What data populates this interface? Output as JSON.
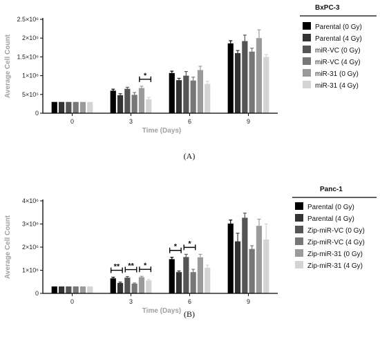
{
  "chart_data": [
    {
      "type": "bar",
      "panel_label": "(A)",
      "legend_title": "BxPC-3",
      "xlabel": "Time (Days)",
      "ylabel": "Average Cell Count",
      "categories": [
        "0",
        "3",
        "6",
        "9"
      ],
      "ylim": [
        0,
        2500000
      ],
      "y_ticks": [
        {
          "value": 0,
          "label": "0"
        },
        {
          "value": 500000,
          "label": "5×10⁵"
        },
        {
          "value": 1000000,
          "label": "1×10⁶"
        },
        {
          "value": 1500000,
          "label": "1.5×10⁶"
        },
        {
          "value": 2000000,
          "label": "2×10⁶"
        },
        {
          "value": 2500000,
          "label": "2.5×10⁶"
        }
      ],
      "legend_placement": "right",
      "grid": false,
      "series": [
        {
          "name": "Parental (0 Gy)",
          "color": "#000000",
          "values": [
            300000,
            600000,
            1070000,
            1860000
          ],
          "errors": [
            0,
            40000,
            50000,
            70000
          ]
        },
        {
          "name": "Parental (4 Gy)",
          "color": "#333333",
          "values": [
            300000,
            480000,
            880000,
            1600000
          ],
          "errors": [
            0,
            40000,
            50000,
            70000
          ]
        },
        {
          "name": "miR-VC (0 Gy)",
          "color": "#555555",
          "values": [
            300000,
            650000,
            1000000,
            1920000
          ],
          "errors": [
            0,
            40000,
            110000,
            160000
          ]
        },
        {
          "name": "miR-VC (4 Gy)",
          "color": "#777777",
          "values": [
            300000,
            490000,
            870000,
            1640000
          ],
          "errors": [
            0,
            60000,
            90000,
            90000
          ]
        },
        {
          "name": "miR-31 (0 Gy)",
          "color": "#9b9b9b",
          "values": [
            300000,
            670000,
            1150000,
            2000000
          ],
          "errors": [
            0,
            50000,
            100000,
            220000
          ]
        },
        {
          "name": "miR-31 (4 Gy)",
          "color": "#d4d4d4",
          "values": [
            300000,
            370000,
            780000,
            1500000
          ],
          "errors": [
            0,
            50000,
            70000,
            60000
          ]
        }
      ],
      "significance": [
        {
          "category_index": 1,
          "from_series": 4,
          "to_series": 5,
          "label": "*"
        }
      ]
    },
    {
      "type": "bar",
      "panel_label": "(B)",
      "legend_title": "Panc-1",
      "xlabel": "Time (Days)",
      "ylabel": "Average Cell Count",
      "categories": [
        "0",
        "3",
        "6",
        "9"
      ],
      "ylim": [
        0,
        4000000
      ],
      "y_ticks": [
        {
          "value": 0,
          "label": "0"
        },
        {
          "value": 1000000,
          "label": "1×10⁶"
        },
        {
          "value": 2000000,
          "label": "2×10⁶"
        },
        {
          "value": 3000000,
          "label": "3×10⁶"
        },
        {
          "value": 4000000,
          "label": "4×10⁶"
        }
      ],
      "legend_placement": "right",
      "grid": false,
      "series": [
        {
          "name": "Parental (0 Gy)",
          "color": "#000000",
          "values": [
            300000,
            650000,
            1480000,
            3020000
          ],
          "errors": [
            0,
            50000,
            80000,
            150000
          ]
        },
        {
          "name": "Parental (4 Gy)",
          "color": "#333333",
          "values": [
            300000,
            450000,
            920000,
            2250000
          ],
          "errors": [
            0,
            40000,
            50000,
            350000
          ]
        },
        {
          "name": "Zip-miR-VC (0 Gy)",
          "color": "#555555",
          "values": [
            300000,
            680000,
            1570000,
            3270000
          ],
          "errors": [
            0,
            50000,
            120000,
            200000
          ]
        },
        {
          "name": "Zip-miR-VC (4 Gy)",
          "color": "#777777",
          "values": [
            300000,
            420000,
            920000,
            1920000
          ],
          "errors": [
            0,
            30000,
            120000,
            140000
          ]
        },
        {
          "name": "Zip-miR-31 (0 Gy)",
          "color": "#9b9b9b",
          "values": [
            300000,
            700000,
            1560000,
            2920000
          ],
          "errors": [
            0,
            40000,
            130000,
            290000
          ]
        },
        {
          "name": "Zip-miR-31 (4 Gy)",
          "color": "#d4d4d4",
          "values": [
            300000,
            560000,
            1110000,
            2330000
          ],
          "errors": [
            0,
            40000,
            110000,
            670000
          ]
        }
      ],
      "significance": [
        {
          "category_index": 1,
          "from_series": 0,
          "to_series": 1,
          "label": "**"
        },
        {
          "category_index": 1,
          "from_series": 2,
          "to_series": 3,
          "label": "**"
        },
        {
          "category_index": 1,
          "from_series": 4,
          "to_series": 5,
          "label": "*"
        },
        {
          "category_index": 2,
          "from_series": 0,
          "to_series": 1,
          "label": "*"
        },
        {
          "category_index": 2,
          "from_series": 2,
          "to_series": 3,
          "label": "*"
        }
      ]
    }
  ]
}
